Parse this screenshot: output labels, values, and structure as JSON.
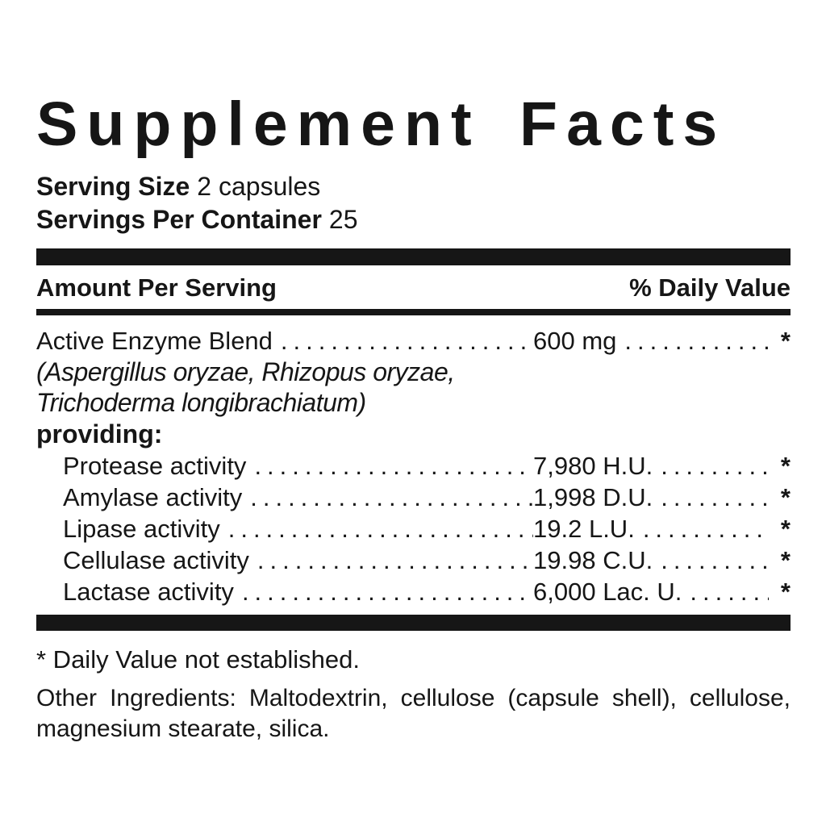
{
  "colors": {
    "text": "#161616",
    "background": "#ffffff",
    "rule_bars": "#161616"
  },
  "panel": {
    "title": "Supplement Facts",
    "serving_size_label": "Serving Size",
    "serving_size_value": "2 capsules",
    "servings_per_container_label": "Servings Per Container",
    "servings_per_container_value": "25",
    "column_left": "Amount Per Serving",
    "column_right": "% Daily Value",
    "blend": {
      "name": "Active Enzyme Blend",
      "leader": "....................................................",
      "amount": "600 mg",
      "trailer": "........................",
      "daily_value": "*"
    },
    "source_line1": "(Aspergillus oryzae, Rhizopus oryzae,",
    "source_line2": "Trichoderma longibrachiatum)",
    "providing_label": "providing:",
    "sub_rows": [
      {
        "name": "Protease activity",
        "leader": "....................................................",
        "amount": "7,980 H.U.",
        "trailer": "........................",
        "daily_value": "*"
      },
      {
        "name": "Amylase activity",
        "leader": "....................................................",
        "amount": "1,998 D.U.",
        "trailer": "........................",
        "daily_value": "*"
      },
      {
        "name": "Lipase activity",
        "leader": "....................................................",
        "amount": "19.2 L.U.",
        "trailer": "........................",
        "daily_value": "*"
      },
      {
        "name": "Cellulase activity",
        "leader": "....................................................",
        "amount": "19.98 C.U.",
        "trailer": "........................",
        "daily_value": "*"
      },
      {
        "name": "Lactase activity",
        "leader": "....................................................",
        "amount": "6,000 Lac. U.",
        "trailer": "........................",
        "daily_value": "*"
      }
    ],
    "footnote": "* Daily Value not established.",
    "other_ingredients": "Other Ingredients: Maltodextrin, cellulose (capsule shell), cellulose, magnesium stearate, silica."
  }
}
